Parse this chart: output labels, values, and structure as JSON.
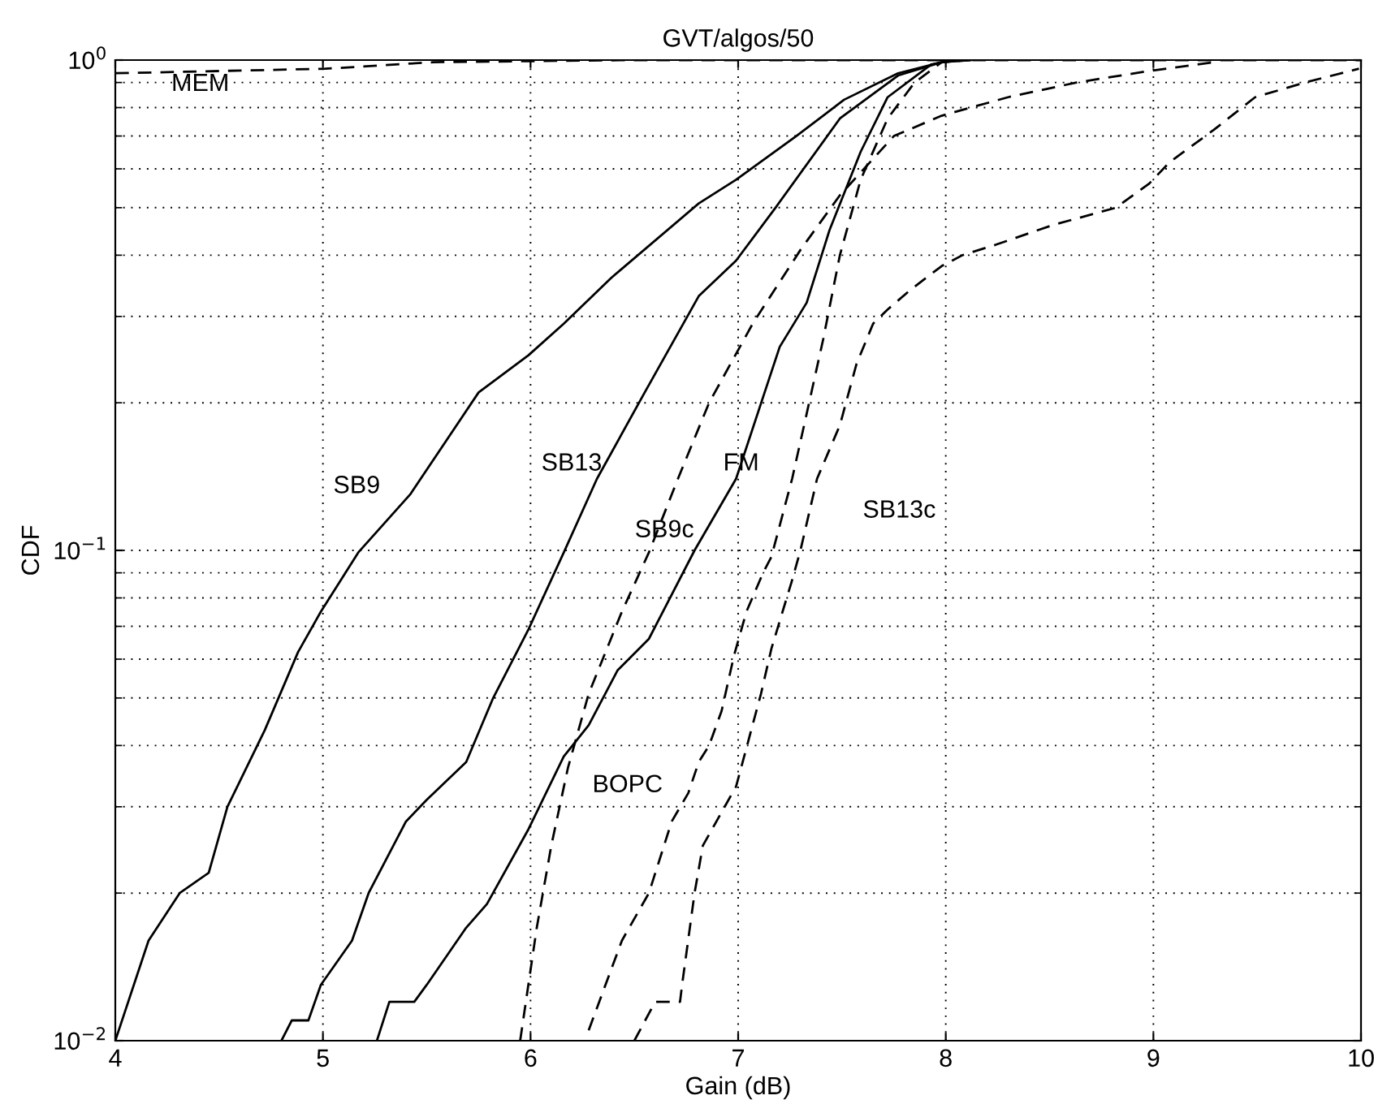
{
  "chart_data": {
    "type": "line",
    "title": "GVT/algos/50",
    "xlabel": "Gain (dB)",
    "ylabel": "CDF",
    "log": "y",
    "grid": true,
    "marker": "none",
    "xlim": [
      4,
      10
    ],
    "xticks": [
      4,
      5,
      6,
      7,
      8,
      9,
      10
    ],
    "ylim": [
      0.01,
      1
    ],
    "yticks": [
      {
        "value": 0.01,
        "label": "10$^{−2}$"
      },
      {
        "value": 0.1,
        "label": "10$^{−1}$"
      },
      {
        "value": 1,
        "label": "10$^{0}$"
      }
    ],
    "series": [
      {
        "name": "SB9",
        "color": "#000000",
        "line_style": "solid",
        "x": [
          4.0,
          4.16,
          4.31,
          4.45,
          4.54,
          4.72,
          4.88,
          4.99,
          5.17,
          5.42,
          5.75,
          5.99,
          6.16,
          6.39,
          6.81,
          6.99,
          7.28,
          7.51,
          7.77,
          7.98,
          8.12
        ],
        "values": [
          0.01,
          0.016,
          0.02,
          0.022,
          0.03,
          0.043,
          0.062,
          0.075,
          0.099,
          0.13,
          0.21,
          0.25,
          0.29,
          0.36,
          0.51,
          0.57,
          0.7,
          0.83,
          0.94,
          0.99,
          1.0
        ]
      },
      {
        "name": "SB13",
        "color": "#000000",
        "line_style": "solid",
        "x": [
          4.8,
          4.85,
          4.93,
          4.99,
          5.14,
          5.22,
          5.4,
          5.5,
          5.69,
          5.82,
          5.99,
          6.16,
          6.32,
          6.55,
          6.81,
          6.99,
          7.18,
          7.49,
          7.77,
          7.98,
          8.1
        ],
        "values": [
          0.01,
          0.011,
          0.011,
          0.013,
          0.016,
          0.02,
          0.028,
          0.031,
          0.037,
          0.05,
          0.069,
          0.099,
          0.14,
          0.21,
          0.33,
          0.39,
          0.5,
          0.76,
          0.93,
          0.99,
          1.0
        ]
      },
      {
        "name": "FM",
        "color": "#000000",
        "line_style": "solid",
        "x": [
          5.26,
          5.32,
          5.44,
          5.5,
          5.69,
          5.79,
          5.99,
          6.16,
          6.28,
          6.42,
          6.57,
          6.79,
          6.99,
          7.2,
          7.33,
          7.44,
          7.59,
          7.72,
          7.93,
          8.04
        ],
        "values": [
          0.01,
          0.012,
          0.012,
          0.013,
          0.017,
          0.019,
          0.027,
          0.038,
          0.044,
          0.057,
          0.066,
          0.1,
          0.14,
          0.26,
          0.32,
          0.45,
          0.65,
          0.84,
          0.98,
          1.0
        ]
      },
      {
        "name": "SB9c",
        "color": "#000000",
        "line_style": "dashed",
        "x": [
          5.95,
          6.03,
          6.1,
          6.18,
          6.28,
          6.44,
          6.57,
          6.71,
          6.86,
          7.07,
          7.3,
          7.49,
          7.75,
          7.98,
          8.3,
          8.63,
          8.98,
          9.29
        ],
        "values": [
          0.01,
          0.017,
          0.025,
          0.036,
          0.051,
          0.075,
          0.099,
          0.14,
          0.2,
          0.29,
          0.41,
          0.53,
          0.7,
          0.77,
          0.84,
          0.9,
          0.95,
          0.99
        ]
      },
      {
        "name": "BOPC",
        "color": "#000000",
        "line_style": "dashed",
        "x": [
          6.28,
          6.44,
          6.57,
          6.68,
          6.76,
          6.81,
          6.86,
          6.92,
          6.98,
          7.04,
          7.12,
          7.16,
          7.26,
          7.33,
          7.41,
          7.49,
          7.59,
          7.72,
          7.85,
          7.98,
          8.12
        ],
        "values": [
          0.0105,
          0.016,
          0.02,
          0.028,
          0.032,
          0.037,
          0.04,
          0.047,
          0.061,
          0.075,
          0.09,
          0.097,
          0.14,
          0.19,
          0.27,
          0.4,
          0.57,
          0.76,
          0.9,
          0.99,
          1.0
        ]
      },
      {
        "name": "SB13c",
        "color": "#000000",
        "line_style": "dashed",
        "x": [
          6.5,
          6.6,
          6.72,
          6.73,
          6.79,
          6.83,
          6.99,
          7.11,
          7.16,
          7.26,
          7.3,
          7.38,
          7.49,
          7.57,
          7.65,
          7.72,
          7.83,
          7.98,
          8.08,
          8.24,
          8.51,
          8.82,
          8.98,
          9.08,
          9.29,
          9.49,
          9.73,
          9.99
        ],
        "values": [
          0.01,
          0.012,
          0.012,
          0.013,
          0.02,
          0.025,
          0.033,
          0.051,
          0.063,
          0.087,
          0.1,
          0.14,
          0.18,
          0.24,
          0.29,
          0.31,
          0.34,
          0.38,
          0.4,
          0.42,
          0.46,
          0.5,
          0.56,
          0.62,
          0.72,
          0.84,
          0.9,
          0.96
        ]
      },
      {
        "name": "MEM",
        "color": "#000000",
        "line_style": "dashed",
        "x": [
          4.0,
          5.01,
          5.53,
          6.0,
          6.5,
          7.0,
          7.5,
          8.0,
          9.0,
          10.0
        ],
        "values": [
          0.94,
          0.96,
          0.99,
          0.995,
          1.0,
          1.0,
          1.0,
          1.0,
          1.0,
          1.0
        ]
      }
    ]
  }
}
